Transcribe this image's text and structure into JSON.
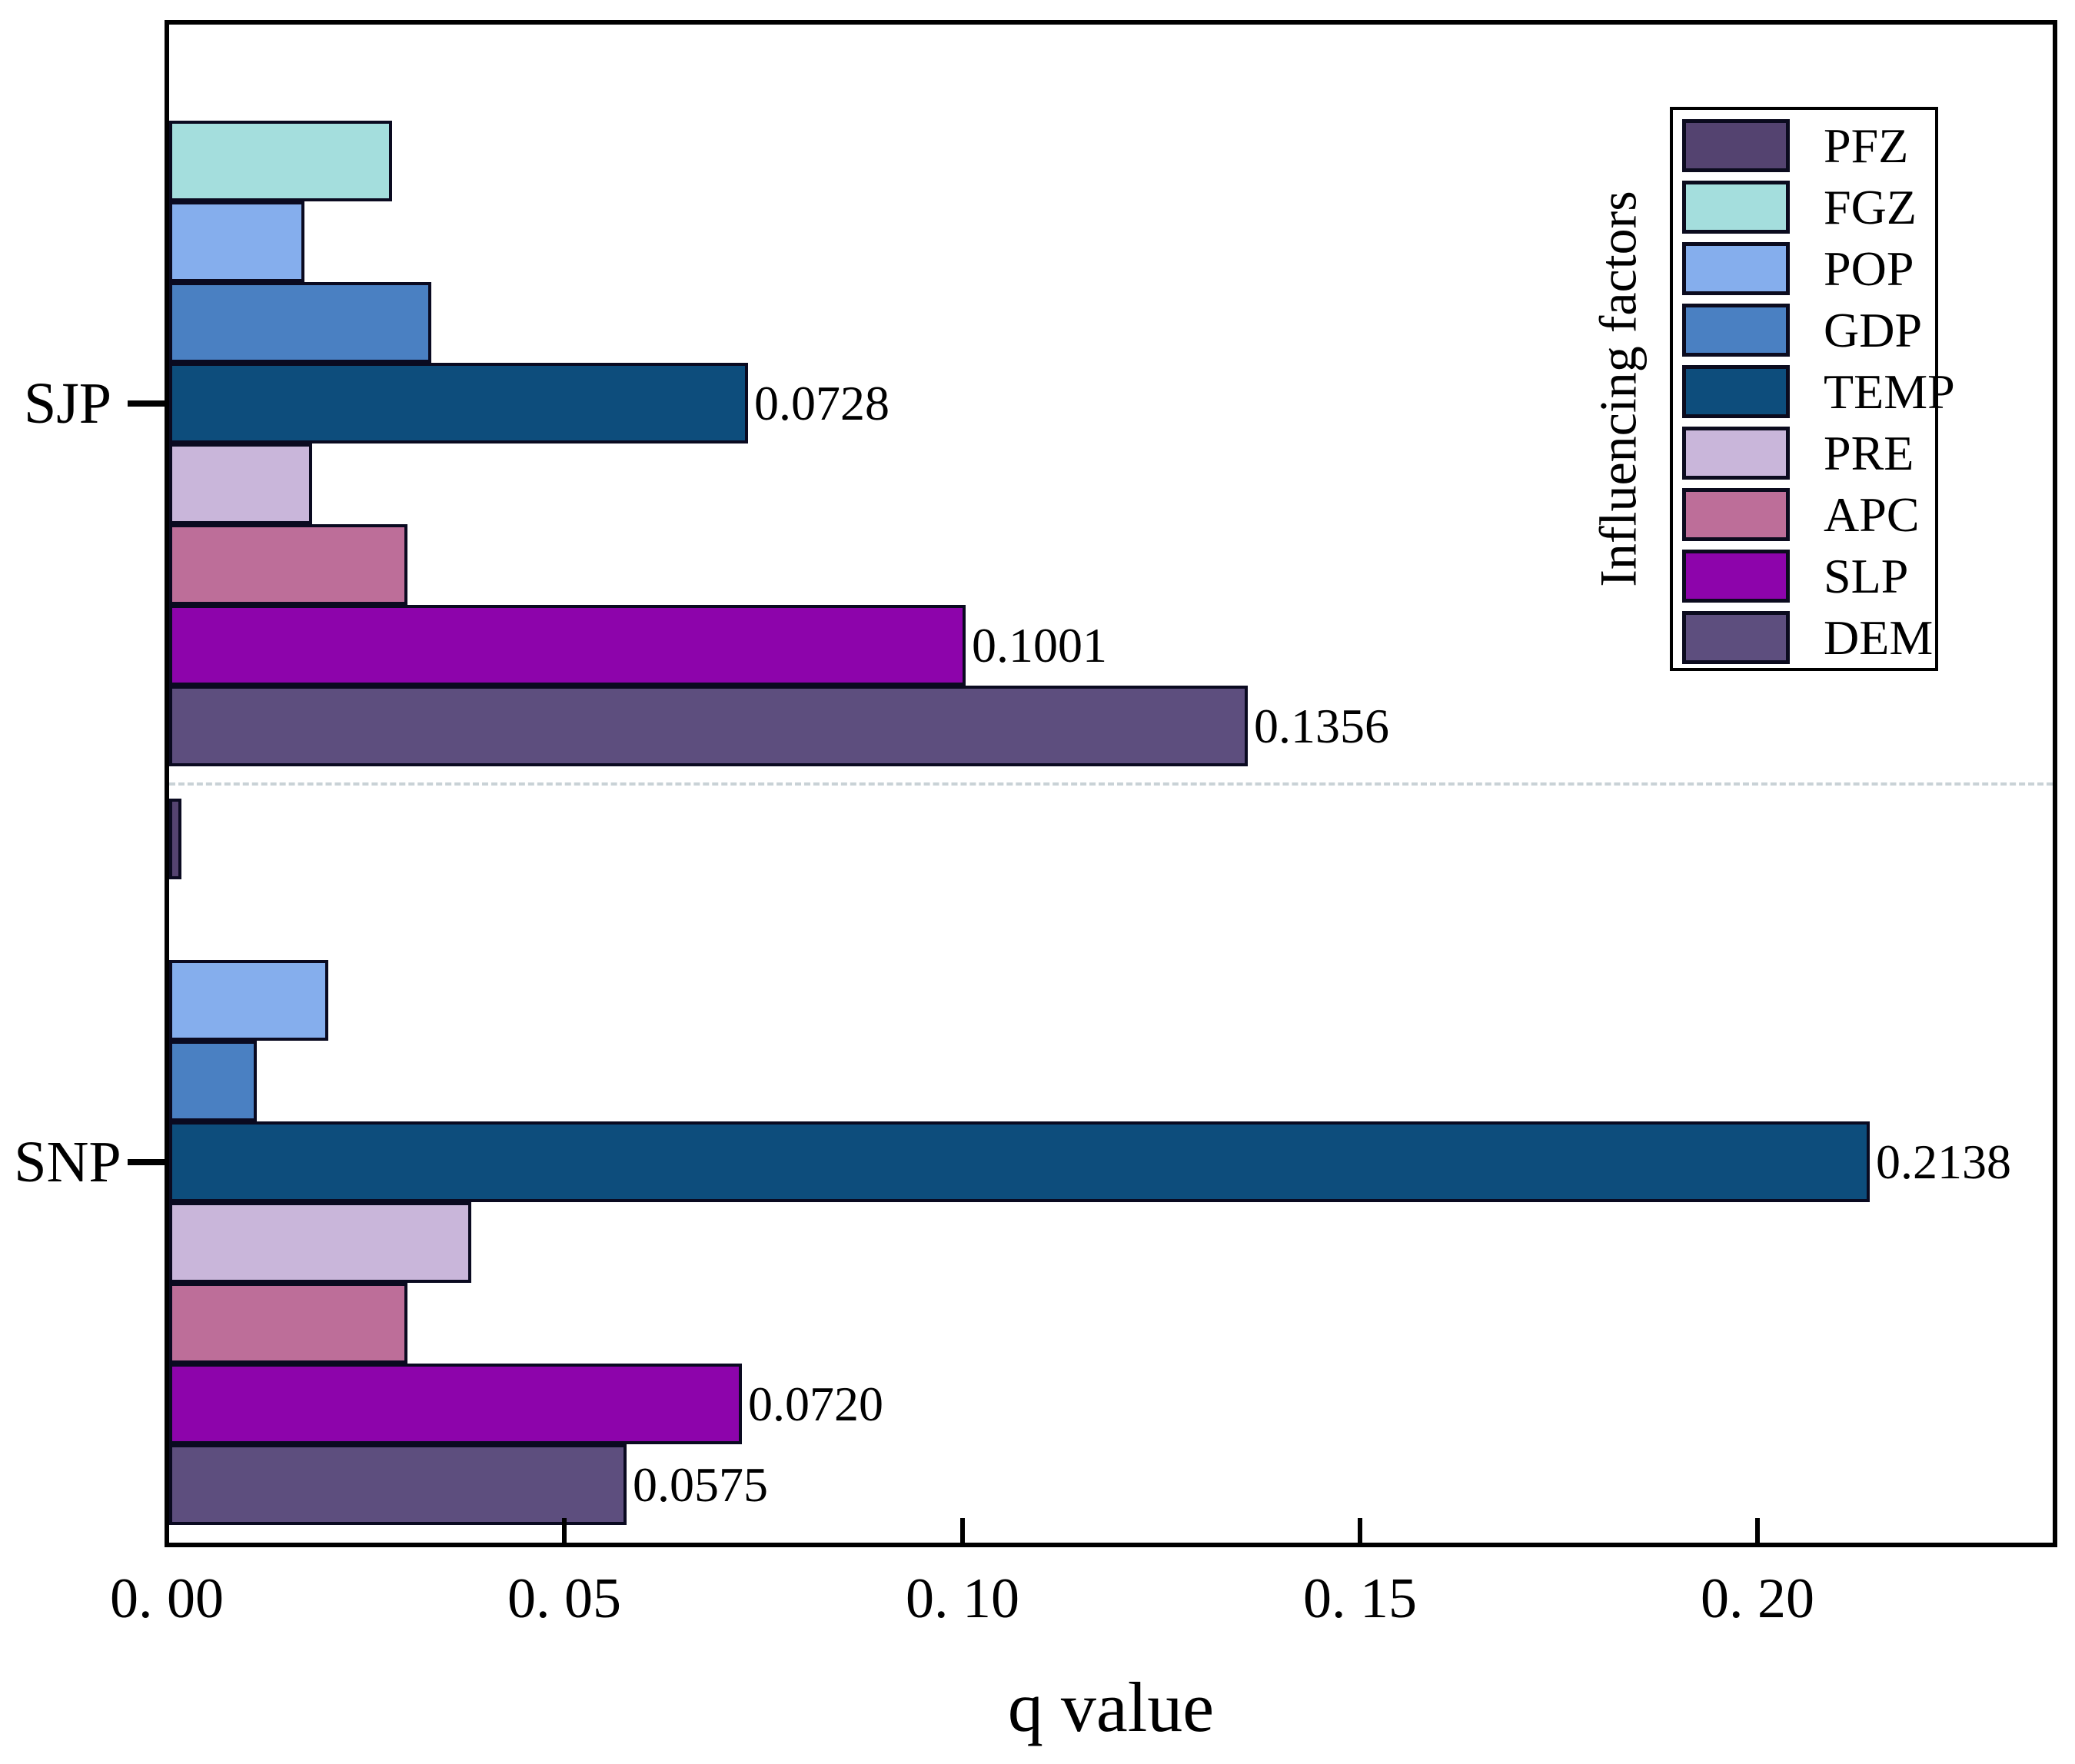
{
  "page": {
    "background": "#ffffff"
  },
  "chart_data": {
    "type": "bar",
    "orientation": "horizontal",
    "title": "",
    "xlabel": "q value",
    "ylabel": "",
    "legend_title": "Influencing factors",
    "legend_position": "upper right",
    "grid": false,
    "xlim": [
      0,
      0.237
    ],
    "x_ticks": [
      {
        "value": 0.0,
        "label": "0. 00"
      },
      {
        "value": 0.05,
        "label": "0. 05"
      },
      {
        "value": 0.1,
        "label": "0. 10"
      },
      {
        "value": 0.15,
        "label": "0. 15"
      },
      {
        "value": 0.2,
        "label": "0. 20"
      }
    ],
    "factors": [
      {
        "name": "PFZ",
        "color": "#544370"
      },
      {
        "name": "FGZ",
        "color": "#a4dedd"
      },
      {
        "name": "POP",
        "color": "#85aeed"
      },
      {
        "name": "GDP",
        "color": "#4a80c2"
      },
      {
        "name": "TEMP",
        "color": "#0d4d7c"
      },
      {
        "name": "PRE",
        "color": "#c9b6da"
      },
      {
        "name": "APC",
        "color": "#bd6e99"
      },
      {
        "name": "SLP",
        "color": "#8d04ab"
      },
      {
        "name": "DEM",
        "color": "#5d4e7e"
      }
    ],
    "groups": [
      {
        "name": "SJP",
        "values": {
          "PFZ": 0,
          "FGZ": 0.028,
          "POP": 0.017,
          "GDP": 0.033,
          "TEMP": 0.0728,
          "PRE": 0.018,
          "APC": 0.03,
          "SLP": 0.1001,
          "DEM": 0.1356
        },
        "bar_labels": {
          "TEMP": "0.0728",
          "SLP": "0.1001",
          "DEM": "0.1356"
        }
      },
      {
        "name": "SNP",
        "values": {
          "PFZ": 0.0015,
          "FGZ": 0,
          "POP": 0.02,
          "GDP": 0.011,
          "TEMP": 0.2138,
          "PRE": 0.038,
          "APC": 0.03,
          "SLP": 0.072,
          "DEM": 0.0575
        },
        "bar_labels": {
          "TEMP": "0.2138",
          "SLP": "0.0720",
          "DEM": "0.0575"
        }
      }
    ],
    "separator": {
      "style": "dashed",
      "color": "#c9d2d6"
    }
  },
  "styles": {
    "bar_border": "#0a0a20",
    "axis_color": "#000000",
    "text_color": "#000000"
  }
}
